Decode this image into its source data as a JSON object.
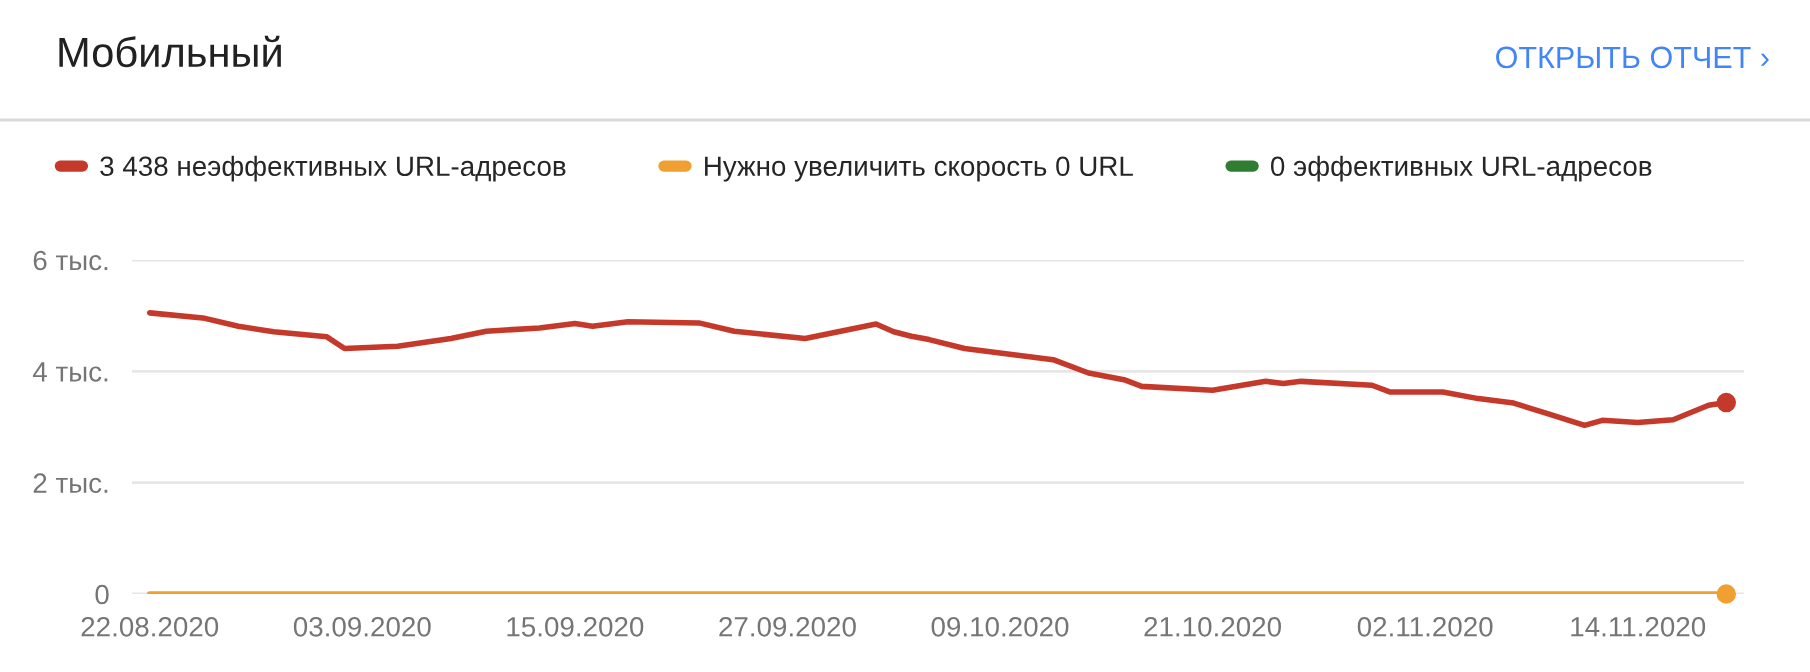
{
  "chart_data": {
    "type": "line",
    "title": "Мобильный",
    "annotations": [
      "ОТКРЫТЬ ОТЧЕТ ›"
    ],
    "series": [
      {
        "name": "3 438 неэффективных URL-адресов",
        "color": "#c5392b",
        "x": [
          "2020-08-22",
          "2020-08-25",
          "2020-08-27",
          "2020-08-29",
          "2020-09-01",
          "2020-09-02",
          "2020-09-05",
          "2020-09-08",
          "2020-09-10",
          "2020-09-13",
          "2020-09-15",
          "2020-09-16",
          "2020-09-18",
          "2020-09-22",
          "2020-09-24",
          "2020-09-28",
          "2020-10-02",
          "2020-10-03",
          "2020-10-04",
          "2020-10-05",
          "2020-10-07",
          "2020-10-10",
          "2020-10-12",
          "2020-10-14",
          "2020-10-16",
          "2020-10-17",
          "2020-10-21",
          "2020-10-24",
          "2020-10-25",
          "2020-10-26",
          "2020-10-30",
          "2020-10-31",
          "2020-11-03",
          "2020-11-05",
          "2020-11-07",
          "2020-11-09",
          "2020-11-11",
          "2020-11-12",
          "2020-11-14",
          "2020-11-16",
          "2020-11-18",
          "2020-11-19"
        ],
        "values": [
          5.05,
          4.96,
          4.81,
          4.71,
          4.62,
          4.41,
          4.45,
          4.59,
          4.72,
          4.78,
          4.86,
          4.81,
          4.89,
          4.87,
          4.72,
          4.59,
          4.85,
          4.71,
          4.63,
          4.57,
          4.41,
          4.29,
          4.21,
          3.97,
          3.85,
          3.73,
          3.66,
          3.82,
          3.78,
          3.82,
          3.75,
          3.63,
          3.63,
          3.51,
          3.43,
          3.23,
          3.03,
          3.12,
          3.08,
          3.13,
          3.39,
          3.44
        ]
      },
      {
        "name": "Нужно увеличить скорость 0 URL",
        "color": "#f0a030",
        "x": [
          "2020-08-22",
          "2020-08-25",
          "2020-08-27",
          "2020-08-29",
          "2020-09-01",
          "2020-09-02",
          "2020-09-05",
          "2020-09-08",
          "2020-09-10",
          "2020-09-13",
          "2020-09-15",
          "2020-09-16",
          "2020-09-18",
          "2020-09-22",
          "2020-09-24",
          "2020-09-28",
          "2020-10-02",
          "2020-10-03",
          "2020-10-04",
          "2020-10-05",
          "2020-10-07",
          "2020-10-10",
          "2020-10-12",
          "2020-10-14",
          "2020-10-16",
          "2020-10-17",
          "2020-10-21",
          "2020-10-24",
          "2020-10-25",
          "2020-10-26",
          "2020-10-30",
          "2020-10-31",
          "2020-11-03",
          "2020-11-05",
          "2020-11-07",
          "2020-11-09",
          "2020-11-11",
          "2020-11-12",
          "2020-11-14",
          "2020-11-16",
          "2020-11-18",
          "2020-11-19"
        ],
        "values": [
          0,
          0,
          0,
          0,
          0,
          0,
          0,
          0,
          0,
          0,
          0,
          0,
          0,
          0,
          0,
          0,
          0,
          0,
          0,
          0,
          0,
          0,
          0,
          0,
          0,
          0,
          0,
          0,
          0,
          0,
          0,
          0,
          0,
          0,
          0,
          0,
          0,
          0,
          0,
          0,
          0,
          0
        ]
      },
      {
        "name": "0 эффективных URL-адресов",
        "color": "#2e7d32"
      }
    ],
    "xlim": [
      "2020-08-21",
      "2020-11-20"
    ],
    "xticks": [
      {
        "value": "2020-08-22",
        "label": "22.08.2020"
      },
      {
        "value": "2020-09-03",
        "label": "03.09.2020"
      },
      {
        "value": "2020-09-15",
        "label": "15.09.2020"
      },
      {
        "value": "2020-09-27",
        "label": "27.09.2020"
      },
      {
        "value": "2020-10-09",
        "label": "09.10.2020"
      },
      {
        "value": "2020-10-21",
        "label": "21.10.2020"
      },
      {
        "value": "2020-11-02",
        "label": "02.11.2020"
      },
      {
        "value": "2020-11-14",
        "label": "14.11.2020"
      }
    ],
    "ylim": [
      0,
      6
    ],
    "yticks": [
      0,
      {
        "value": 2,
        "label": "2 тыс."
      },
      {
        "value": 4,
        "label": "4 тыс."
      },
      {
        "value": 6,
        "label": "6 тыс."
      }
    ],
    "grid": "y",
    "legend": "top",
    "marker": "none",
    "line_style": "solid"
  }
}
